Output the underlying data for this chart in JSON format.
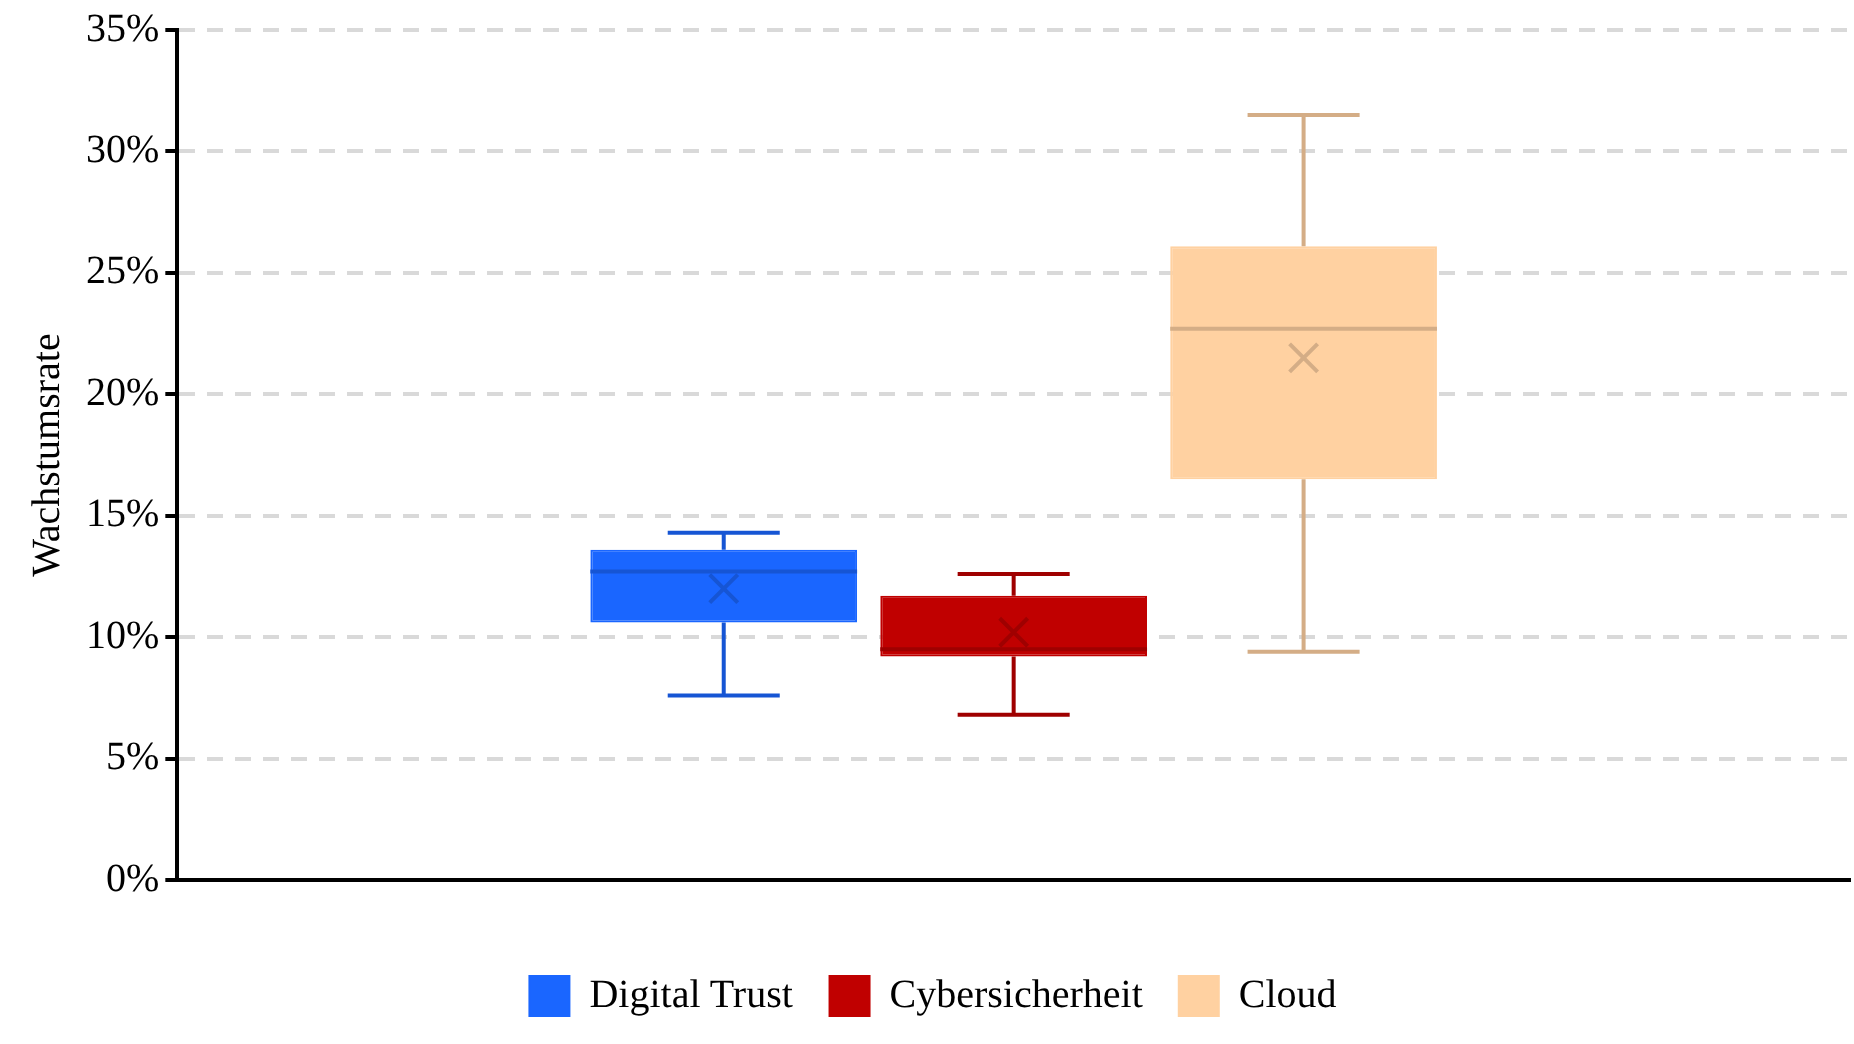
{
  "chart_data": {
    "type": "box",
    "ylabel": "Wachstumsrate",
    "categories": [
      null
    ],
    "series": [
      {
        "name": "Digital Trust",
        "color": "#1a66ff",
        "boxes": [
          {
            "low": 7.6,
            "q1": 10.6,
            "median": 12.7,
            "q3": 13.6,
            "high": 14.3,
            "mean": 12.0
          }
        ]
      },
      {
        "name": "Cybersicherheit",
        "color": "#c00000",
        "boxes": [
          {
            "low": 6.8,
            "q1": 9.2,
            "median": 9.5,
            "q3": 11.7,
            "high": 12.6,
            "mean": 10.2
          }
        ]
      },
      {
        "name": "Cloud",
        "color": "#ffd1a1",
        "boxes": [
          {
            "low": 9.4,
            "q1": 16.5,
            "median": 22.7,
            "q3": 26.1,
            "high": 31.5,
            "mean": 21.5
          }
        ]
      }
    ],
    "ylim": [
      0,
      35
    ],
    "yticks": [
      {
        "value": 0,
        "label": "0%"
      },
      {
        "value": 5,
        "label": "5%"
      },
      {
        "value": 10,
        "label": "10%"
      },
      {
        "value": 15,
        "label": "15%"
      },
      {
        "value": 20,
        "label": "20%"
      },
      {
        "value": 25,
        "label": "25%"
      },
      {
        "value": 30,
        "label": "30%"
      },
      {
        "value": 35,
        "label": "35%"
      }
    ],
    "grid": "y",
    "legend": "bottom"
  }
}
